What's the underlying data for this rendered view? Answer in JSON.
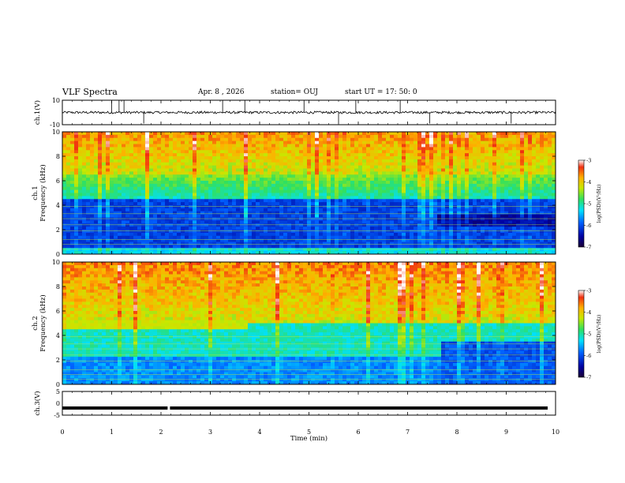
{
  "header": {
    "title": "VLF Spectra",
    "date": "Apr. 8 , 2026",
    "station": "station= OUJ",
    "start": "start UT = 17: 50: 0"
  },
  "chart_data": [
    {
      "type": "line",
      "panel": "ch1-waveform",
      "ylabel": "ch.1(V)",
      "ylim": [
        -10,
        10
      ],
      "yticks": [
        "10",
        "-10"
      ],
      "xlim": [
        0,
        10
      ],
      "x_units": "min",
      "series": [
        {
          "baseline": 0,
          "approx_amplitude": 1,
          "spike_times": [
            1.0,
            1.15,
            1.25,
            1.65,
            3.25,
            3.7,
            4.9,
            5.6,
            5.95,
            6.85,
            7.45,
            9.1
          ]
        }
      ]
    },
    {
      "type": "heatmap",
      "panel": "ch1-spectrogram",
      "ylabel": "ch.1 Frequency (kHz)",
      "ylim": [
        0,
        10
      ],
      "yticks": [
        "0",
        "2",
        "4",
        "6",
        "8",
        "10"
      ],
      "xlim": [
        0,
        10
      ],
      "colorbar": {
        "label": "log(PSD)(V²/Hz)",
        "range": [
          -7,
          -3
        ],
        "ticks": [
          "-3",
          "-4",
          "-5",
          "-6",
          "-7"
        ]
      },
      "bands_khz": [
        {
          "range": [
            0,
            4.5
          ],
          "level": "low (blue)"
        },
        {
          "range": [
            4.5,
            6.5
          ],
          "level": "mid (cyan/green)"
        },
        {
          "range": [
            6.5,
            10
          ],
          "level": "high (yellow/orange/red)"
        }
      ]
    },
    {
      "type": "heatmap",
      "panel": "ch2-spectrogram",
      "ylabel": "ch.2 Frequency (kHz)",
      "ylim": [
        0,
        10
      ],
      "yticks": [
        "0",
        "2",
        "4",
        "6",
        "8",
        "10"
      ],
      "xlim": [
        0,
        10
      ],
      "colorbar": {
        "label": "log(PSD)(V²/Hz)",
        "range": [
          -7,
          -3
        ],
        "ticks": [
          "-3",
          "-4",
          "-5",
          "-6",
          "-7"
        ]
      },
      "bands_khz": [
        {
          "range": [
            0,
            2.3
          ],
          "level": "low (blue)"
        },
        {
          "range": [
            2.3,
            5.0
          ],
          "level": "mid (cyan/green)"
        },
        {
          "range": [
            5.0,
            10
          ],
          "level": "high (yellow/orange/red)"
        }
      ],
      "notes": "green band near 5 kHz until ~3.8 min; low-frequency blue region after ~7.7 min"
    },
    {
      "type": "line",
      "panel": "ch3",
      "ylabel": "ch.3(V)",
      "ylim": [
        -5,
        5
      ],
      "yticks": [
        "5",
        "0",
        "-5"
      ],
      "xlim": [
        0,
        10
      ],
      "xlabel": "Time (min)",
      "xticks": [
        "0",
        "1",
        "2",
        "3",
        "4",
        "5",
        "6",
        "7",
        "8",
        "9",
        "10"
      ],
      "series": [
        {
          "constant_value": -2,
          "gap_at": 2.15
        }
      ]
    }
  ]
}
